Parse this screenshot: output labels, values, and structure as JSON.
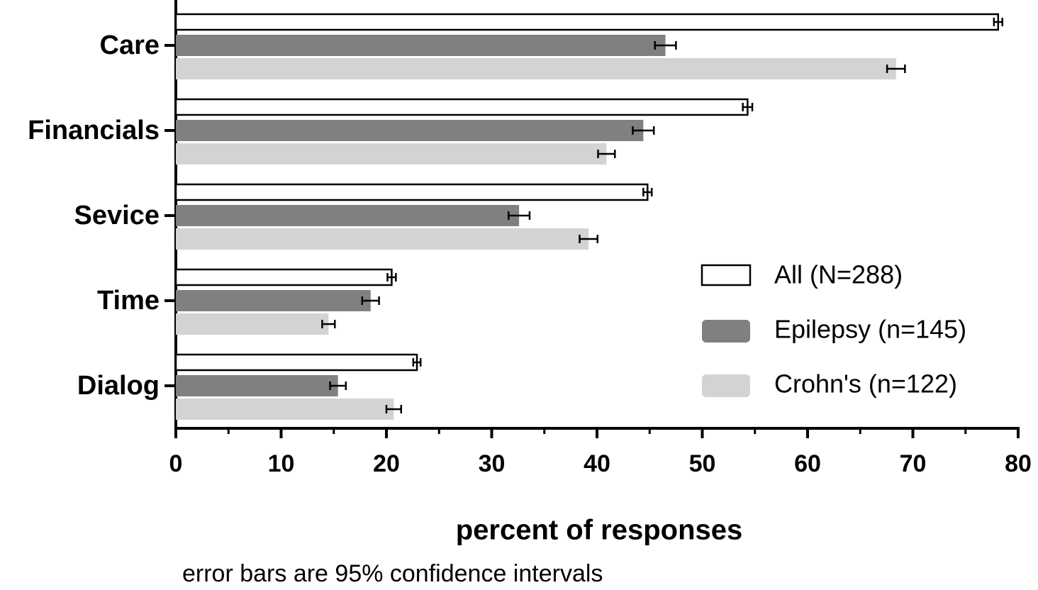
{
  "chart_data": {
    "type": "bar",
    "orientation": "horizontal",
    "categories": [
      "Care",
      "Financials",
      "Sevice",
      "Time",
      "Dialog"
    ],
    "series": [
      {
        "name": "All (N=288)",
        "color": "#ffffff",
        "values": [
          78.1,
          54.3,
          44.8,
          20.5,
          22.9
        ],
        "errors": [
          0.4,
          0.45,
          0.4,
          0.4,
          0.35
        ]
      },
      {
        "name": "Epilepsy (n=145)",
        "color": "#808080",
        "values": [
          46.5,
          44.4,
          32.6,
          18.5,
          15.4
        ],
        "errors": [
          1.0,
          1.0,
          1.0,
          0.8,
          0.75
        ]
      },
      {
        "name": "Crohn's (n=122)",
        "color": "#d3d3d3",
        "values": [
          68.4,
          40.9,
          39.2,
          14.5,
          20.7
        ],
        "errors": [
          0.85,
          0.8,
          0.85,
          0.6,
          0.7
        ]
      }
    ],
    "xlim": [
      0,
      80
    ],
    "xticks": [
      0,
      10,
      20,
      30,
      40,
      50,
      60,
      70,
      80
    ],
    "minor_xticks": [
      5,
      15,
      25,
      35,
      45,
      55,
      65,
      75
    ],
    "xlabel": "percent of responses",
    "note": "error bars are 95% confidence intervals",
    "legend": "lower-right"
  }
}
